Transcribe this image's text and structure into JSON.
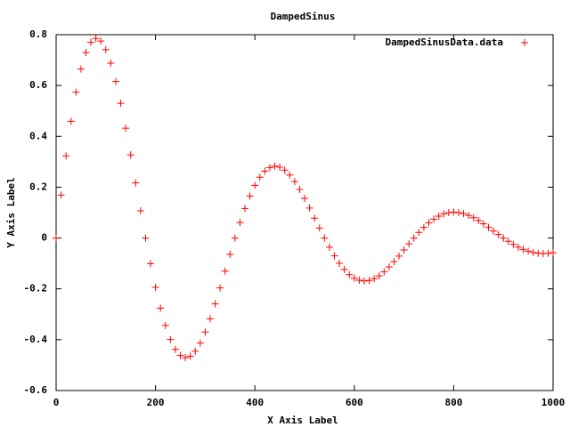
{
  "chart_data": {
    "type": "scatter",
    "title": "DampedSinus",
    "x_label": "X Axis Label",
    "y_label": "Y Axis Label",
    "xlim": [
      0,
      1000
    ],
    "xticks": [
      0,
      200,
      400,
      600,
      800,
      1000
    ],
    "ylim": [
      -0.6,
      0.8
    ],
    "yticks": [
      -0.6,
      -0.4,
      -0.2,
      0,
      0.2,
      0.4,
      0.6,
      0.8
    ],
    "legend": "top right",
    "marker": "plus",
    "x": [
      0,
      10,
      20,
      30,
      40,
      50,
      60,
      70,
      80,
      90,
      100,
      110,
      120,
      130,
      140,
      150,
      160,
      170,
      180,
      190,
      200,
      210,
      220,
      230,
      240,
      250,
      260,
      270,
      280,
      290,
      300,
      310,
      320,
      330,
      340,
      350,
      360,
      370,
      380,
      390,
      400,
      410,
      420,
      430,
      440,
      450,
      460,
      470,
      480,
      490,
      500,
      510,
      520,
      530,
      540,
      550,
      560,
      570,
      580,
      590,
      600,
      610,
      620,
      630,
      640,
      650,
      660,
      670,
      680,
      690,
      700,
      710,
      720,
      730,
      740,
      750,
      760,
      770,
      780,
      790,
      800,
      810,
      820,
      830,
      840,
      850,
      860,
      870,
      880,
      890,
      900,
      910,
      920,
      930,
      940,
      950,
      960,
      970,
      980,
      990,
      1000
    ],
    "series": [
      {
        "name": "DampedSinusData.data",
        "color": "#ff0000",
        "values": [
          0,
          0.169,
          0.323,
          0.459,
          0.574,
          0.665,
          0.73,
          0.77,
          0.785,
          0.775,
          0.741,
          0.688,
          0.616,
          0.53,
          0.432,
          0.327,
          0.217,
          0.107,
          0,
          -0.101,
          -0.194,
          -0.276,
          -0.344,
          -0.399,
          -0.438,
          -0.462,
          -0.471,
          -0.465,
          -0.445,
          -0.413,
          -0.37,
          -0.318,
          -0.259,
          -0.196,
          -0.13,
          -0.064,
          0,
          0.061,
          0.116,
          0.165,
          0.207,
          0.239,
          0.263,
          0.277,
          0.283,
          0.279,
          0.267,
          0.248,
          0.222,
          0.191,
          0.156,
          0.118,
          0.078,
          0.039,
          0,
          -0.036,
          -0.07,
          -0.099,
          -0.124,
          -0.144,
          -0.158,
          -0.166,
          -0.169,
          -0.167,
          -0.16,
          -0.149,
          -0.133,
          -0.114,
          -0.093,
          -0.071,
          -0.047,
          -0.023,
          0,
          0.022,
          0.042,
          0.06,
          0.074,
          0.086,
          0.095,
          0.1,
          0.102,
          0.1,
          0.096,
          0.089,
          0.08,
          0.069,
          0.056,
          0.042,
          0.028,
          0.014,
          0,
          -0.013,
          -0.025,
          -0.036,
          -0.045,
          -0.052,
          -0.057,
          -0.06,
          -0.061,
          -0.06,
          -0.058
        ]
      }
    ]
  }
}
